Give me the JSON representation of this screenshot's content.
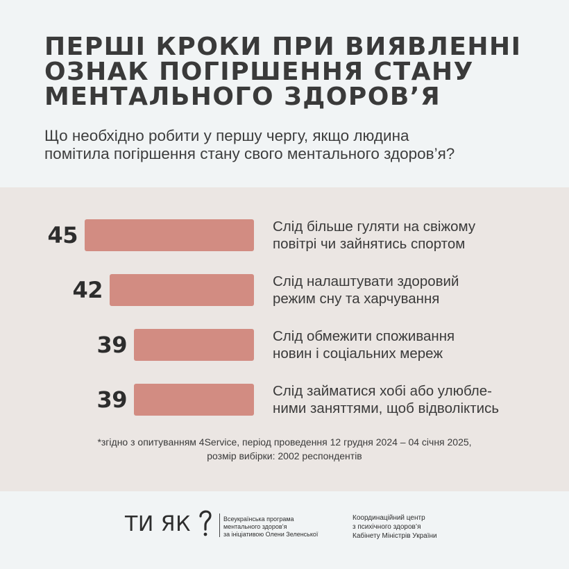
{
  "header": {
    "title_lines": [
      "ПЕРШІ КРОКИ ПРИ ВИЯВЛЕННІ",
      "ОЗНАК ПОГІРШЕННЯ СТАНУ",
      "МЕНТАЛЬНОГО ЗДОРОВ’Я"
    ],
    "subtitle_lines": [
      "Що необхідно робити у першу чергу, якщо людина",
      "помітила погіршення стану свого ментального здоров’я?"
    ]
  },
  "chart_data": {
    "type": "bar",
    "orientation": "horizontal",
    "bar_growth": "right-aligned (bars extend leftward)",
    "bar_color": "#d28c82",
    "categories": [
      "Слід більше гуляти на свіжому повітрі чи зайнятись спортом",
      "Слід налаштувати здоровий режим сну та харчування",
      "Слід обмежити споживання новин і соціальних мереж",
      "Слід займатися хобі або улюбленими заняттями, щоб відволіктись"
    ],
    "category_lines": [
      [
        "Слід більше гуляти на свіжому",
        "повітрі чи зайнятись спортом"
      ],
      [
        "Слід налаштувати здоровий",
        "режим сну та харчування"
      ],
      [
        "Слід обмежити споживання",
        "новин і соціальних мереж"
      ],
      [
        "Слід займатися хобі або улюбле-",
        "ними заняттями, щоб відволіктись"
      ]
    ],
    "values": [
      45,
      42,
      39,
      39
    ],
    "value_labels": [
      "45",
      "42",
      "39",
      "39"
    ],
    "grid": false,
    "legend": "none"
  },
  "footnote_lines": [
    "*згідно з опитуванням 4Service, період проведення 12 грудня 2024 – 04 січня 2025,",
    "розмір вибірки: 2002 респондентів"
  ],
  "footer": {
    "logo_text": "ТИ ЯК",
    "logo_icon": "question-mark-icon",
    "program_lines": [
      "Всеукраїнська програма",
      "ментального здоров’я",
      "за ініціативою Олени Зеленської"
    ],
    "coordination_lines": [
      "Координаційний центр",
      "з психічного здоров’я",
      "Кабінету Міністрів України"
    ]
  },
  "colors": {
    "background": "#f1f4f5",
    "panel": "#ebe6e3",
    "bar": "#d28c82",
    "text": "#333333"
  }
}
